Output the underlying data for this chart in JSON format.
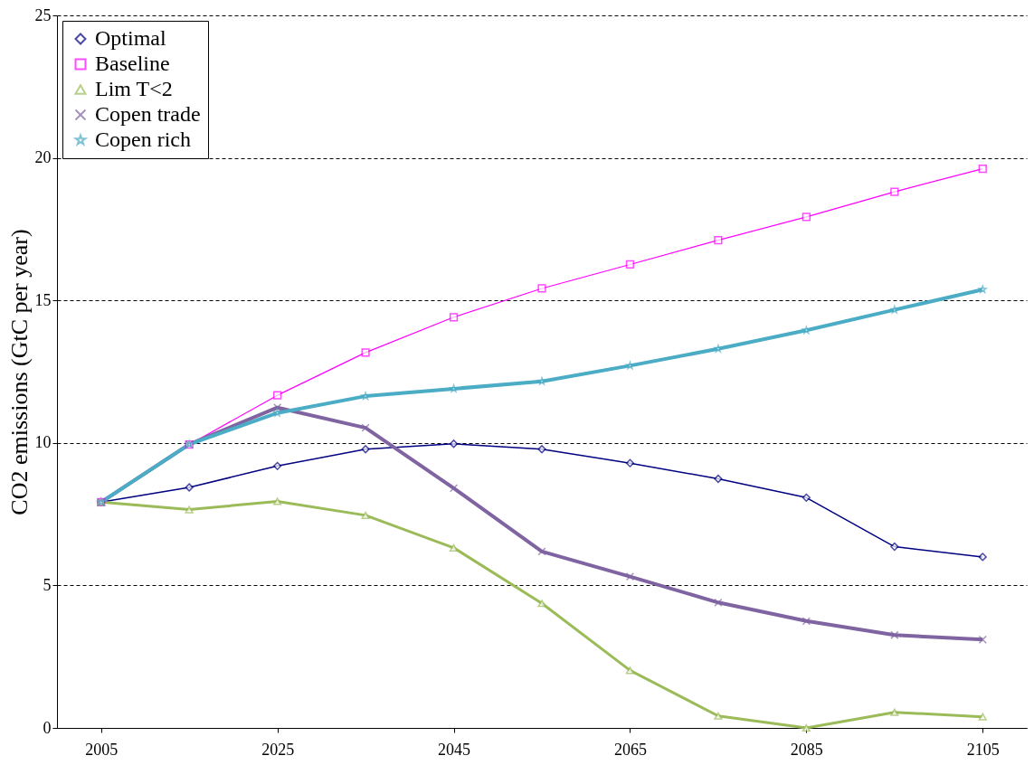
{
  "chart_data": {
    "type": "line",
    "ylabel": "CO2 emissions (GtC per year)",
    "x": [
      2005,
      2015,
      2025,
      2035,
      2045,
      2055,
      2065,
      2075,
      2085,
      2095,
      2105
    ],
    "xlim": [
      2000,
      2110
    ],
    "xticks": [
      2005,
      2025,
      2045,
      2065,
      2085,
      2105
    ],
    "ylim": [
      0,
      25
    ],
    "yticks": [
      0,
      5,
      10,
      15,
      20,
      25
    ],
    "grid": "y",
    "legend": "top left",
    "line_style": "solid",
    "series": [
      {
        "name": "Optimal",
        "color": "#000080",
        "marker": "diamond",
        "values": [
          7.92,
          8.44,
          9.19,
          9.78,
          9.97,
          9.78,
          9.29,
          8.74,
          8.08,
          6.36,
          6.0
        ]
      },
      {
        "name": "Baseline",
        "color": "#ff00ff",
        "marker": "square",
        "values": [
          7.92,
          9.94,
          11.67,
          13.17,
          14.41,
          15.42,
          16.26,
          17.11,
          17.93,
          18.81,
          19.62
        ]
      },
      {
        "name": "Lim T<2",
        "color": "#9bbb59",
        "marker": "triangle",
        "values": [
          7.92,
          7.66,
          7.95,
          7.46,
          6.32,
          4.37,
          2.02,
          0.42,
          0.0,
          0.55,
          0.39
        ]
      },
      {
        "name": "Copen trade",
        "color": "#8064a2",
        "marker": "cross",
        "values": [
          7.92,
          9.95,
          11.24,
          10.53,
          8.41,
          6.19,
          5.31,
          4.4,
          3.75,
          3.26,
          3.1
        ]
      },
      {
        "name": "Copen rich",
        "color": "#4bacc6",
        "marker": "star",
        "values": [
          7.92,
          9.95,
          11.05,
          11.64,
          11.9,
          12.16,
          12.71,
          13.3,
          13.95,
          14.67,
          15.38
        ]
      }
    ]
  }
}
